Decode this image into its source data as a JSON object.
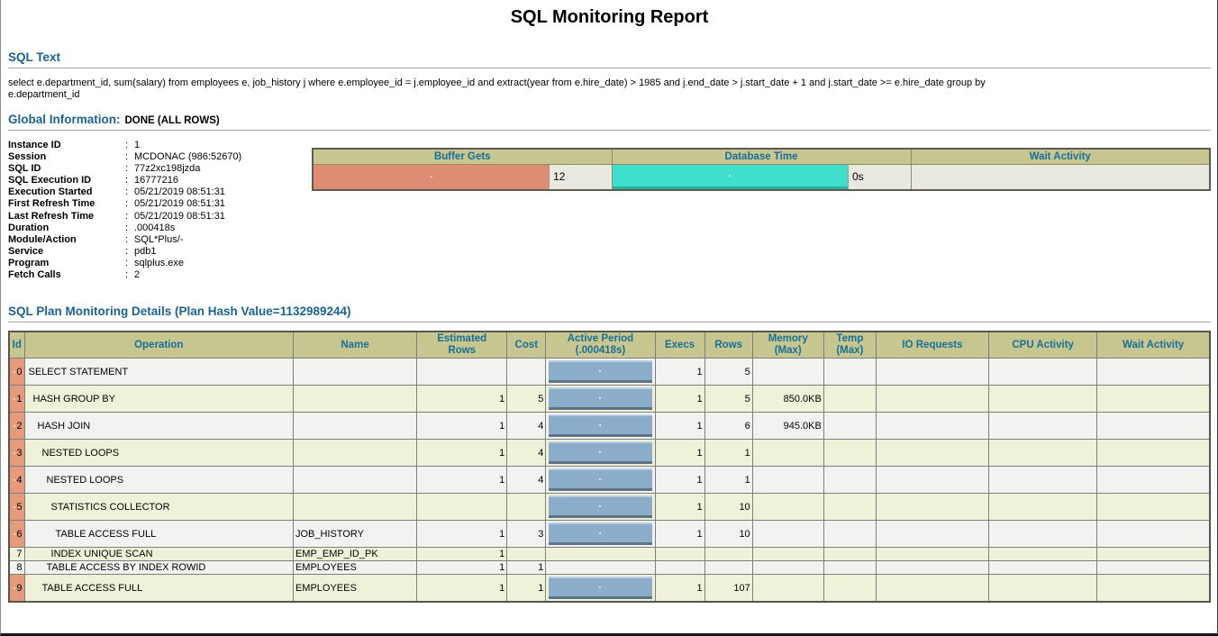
{
  "title": "SQL Monitoring Report",
  "colors": {
    "section_heading": "#1c6391",
    "table_header_bg": "#c8c690",
    "table_header_text": "#176f96",
    "buffer_gets_bar": "#de8d74",
    "database_time_bar": "#3fdecd",
    "database_time_edge": "#25b3a0",
    "active_period_bar": "#8cadc9",
    "id_marker": "#e59a7c",
    "row_even": "#f2f2f1",
    "row_odd": "#f0f1d9"
  },
  "sql_text": {
    "heading": "SQL Text",
    "query": "select e.department_id, sum(salary) from employees e, job_history j where e.employee_id = j.employee_id and extract(year from e.hire_date) > 1985 and j.end_date > j.start_date + 1 and j.start_date >= e.hire_date group by e.department_id"
  },
  "global_information": {
    "heading": "Global Information:",
    "status": "DONE (ALL ROWS)",
    "separator": ":",
    "fields": [
      {
        "label": "Instance ID",
        "value": "1"
      },
      {
        "label": "Session",
        "value": "MCDONAC (986:52670)"
      },
      {
        "label": "SQL ID",
        "value": "77z2xc198jzda"
      },
      {
        "label": "SQL Execution ID",
        "value": "16777216"
      },
      {
        "label": "Execution Started",
        "value": "05/21/2019 08:51:31"
      },
      {
        "label": "First Refresh Time",
        "value": "05/21/2019 08:51:31"
      },
      {
        "label": "Last Refresh Time",
        "value": "05/21/2019 08:51:31"
      },
      {
        "label": "Duration",
        "value": ".000418s"
      },
      {
        "label": "Module/Action",
        "value": "SQL*Plus/-"
      },
      {
        "label": "Service",
        "value": "pdb1"
      },
      {
        "label": "Program",
        "value": "sqlplus.exe"
      },
      {
        "label": "Fetch Calls",
        "value": "2"
      }
    ]
  },
  "summary_metrics": {
    "columns": [
      {
        "label": "Buffer Gets",
        "value": "12",
        "bar_pct": 79,
        "bar_color": "#de8d74",
        "bar_edge": ""
      },
      {
        "label": "Database Time",
        "value": "0s",
        "bar_pct": 79,
        "bar_color": "#3fdecd",
        "bar_edge": "#25b3a0"
      },
      {
        "label": "Wait Activity",
        "value": "",
        "bar_pct": 0,
        "bar_color": "",
        "bar_edge": ""
      }
    ]
  },
  "plan_details": {
    "heading": "SQL Plan Monitoring Details (Plan Hash Value=1132989244)",
    "columns": [
      "Id",
      "Operation",
      "Name",
      "Estimated\nRows",
      "Cost",
      "Active Period\n(.000418s)",
      "Execs",
      "Rows",
      "Memory\n(Max)",
      "Temp\n(Max)",
      "IO Requests",
      "CPU Activity",
      "Wait Activity"
    ],
    "rows": [
      {
        "id": "0",
        "operation": "SELECT STATEMENT",
        "indent": 0,
        "name": "",
        "estimated_rows": "",
        "cost": "",
        "active": true,
        "execs": "1",
        "rows": "5",
        "memory": "",
        "temp": "",
        "io_requests": "",
        "cpu_activity": "",
        "wait_activity": "",
        "compact": false,
        "marker": true
      },
      {
        "id": "1",
        "operation": "HASH GROUP BY",
        "indent": 1,
        "name": "",
        "estimated_rows": "1",
        "cost": "5",
        "active": true,
        "execs": "1",
        "rows": "5",
        "memory": "850.0KB",
        "temp": "",
        "io_requests": "",
        "cpu_activity": "",
        "wait_activity": "",
        "compact": false,
        "marker": true
      },
      {
        "id": "2",
        "operation": "HASH JOIN",
        "indent": 2,
        "name": "",
        "estimated_rows": "1",
        "cost": "4",
        "active": true,
        "execs": "1",
        "rows": "6",
        "memory": "945.0KB",
        "temp": "",
        "io_requests": "",
        "cpu_activity": "",
        "wait_activity": "",
        "compact": false,
        "marker": true
      },
      {
        "id": "3",
        "operation": "NESTED LOOPS",
        "indent": 3,
        "name": "",
        "estimated_rows": "1",
        "cost": "4",
        "active": true,
        "execs": "1",
        "rows": "1",
        "memory": "",
        "temp": "",
        "io_requests": "",
        "cpu_activity": "",
        "wait_activity": "",
        "compact": false,
        "marker": true
      },
      {
        "id": "4",
        "operation": "NESTED LOOPS",
        "indent": 4,
        "name": "",
        "estimated_rows": "1",
        "cost": "4",
        "active": true,
        "execs": "1",
        "rows": "1",
        "memory": "",
        "temp": "",
        "io_requests": "",
        "cpu_activity": "",
        "wait_activity": "",
        "compact": false,
        "marker": true
      },
      {
        "id": "5",
        "operation": "STATISTICS COLLECTOR",
        "indent": 5,
        "name": "",
        "estimated_rows": "",
        "cost": "",
        "active": true,
        "execs": "1",
        "rows": "10",
        "memory": "",
        "temp": "",
        "io_requests": "",
        "cpu_activity": "",
        "wait_activity": "",
        "compact": false,
        "marker": true
      },
      {
        "id": "6",
        "operation": "TABLE ACCESS FULL",
        "indent": 6,
        "name": "JOB_HISTORY",
        "estimated_rows": "1",
        "cost": "3",
        "active": true,
        "execs": "1",
        "rows": "10",
        "memory": "",
        "temp": "",
        "io_requests": "",
        "cpu_activity": "",
        "wait_activity": "",
        "compact": false,
        "marker": true
      },
      {
        "id": "7",
        "operation": "INDEX UNIQUE SCAN",
        "indent": 5,
        "name": "EMP_EMP_ID_PK",
        "estimated_rows": "1",
        "cost": "",
        "active": false,
        "execs": "",
        "rows": "",
        "memory": "",
        "temp": "",
        "io_requests": "",
        "cpu_activity": "",
        "wait_activity": "",
        "compact": true,
        "marker": false
      },
      {
        "id": "8",
        "operation": "TABLE ACCESS BY INDEX ROWID",
        "indent": 4,
        "name": "EMPLOYEES",
        "estimated_rows": "1",
        "cost": "1",
        "active": false,
        "execs": "",
        "rows": "",
        "memory": "",
        "temp": "",
        "io_requests": "",
        "cpu_activity": "",
        "wait_activity": "",
        "compact": true,
        "marker": false
      },
      {
        "id": "9",
        "operation": "TABLE ACCESS FULL",
        "indent": 3,
        "name": "EMPLOYEES",
        "estimated_rows": "1",
        "cost": "1",
        "active": true,
        "execs": "1",
        "rows": "107",
        "memory": "",
        "temp": "",
        "io_requests": "",
        "cpu_activity": "",
        "wait_activity": "",
        "compact": false,
        "marker": true
      }
    ]
  }
}
